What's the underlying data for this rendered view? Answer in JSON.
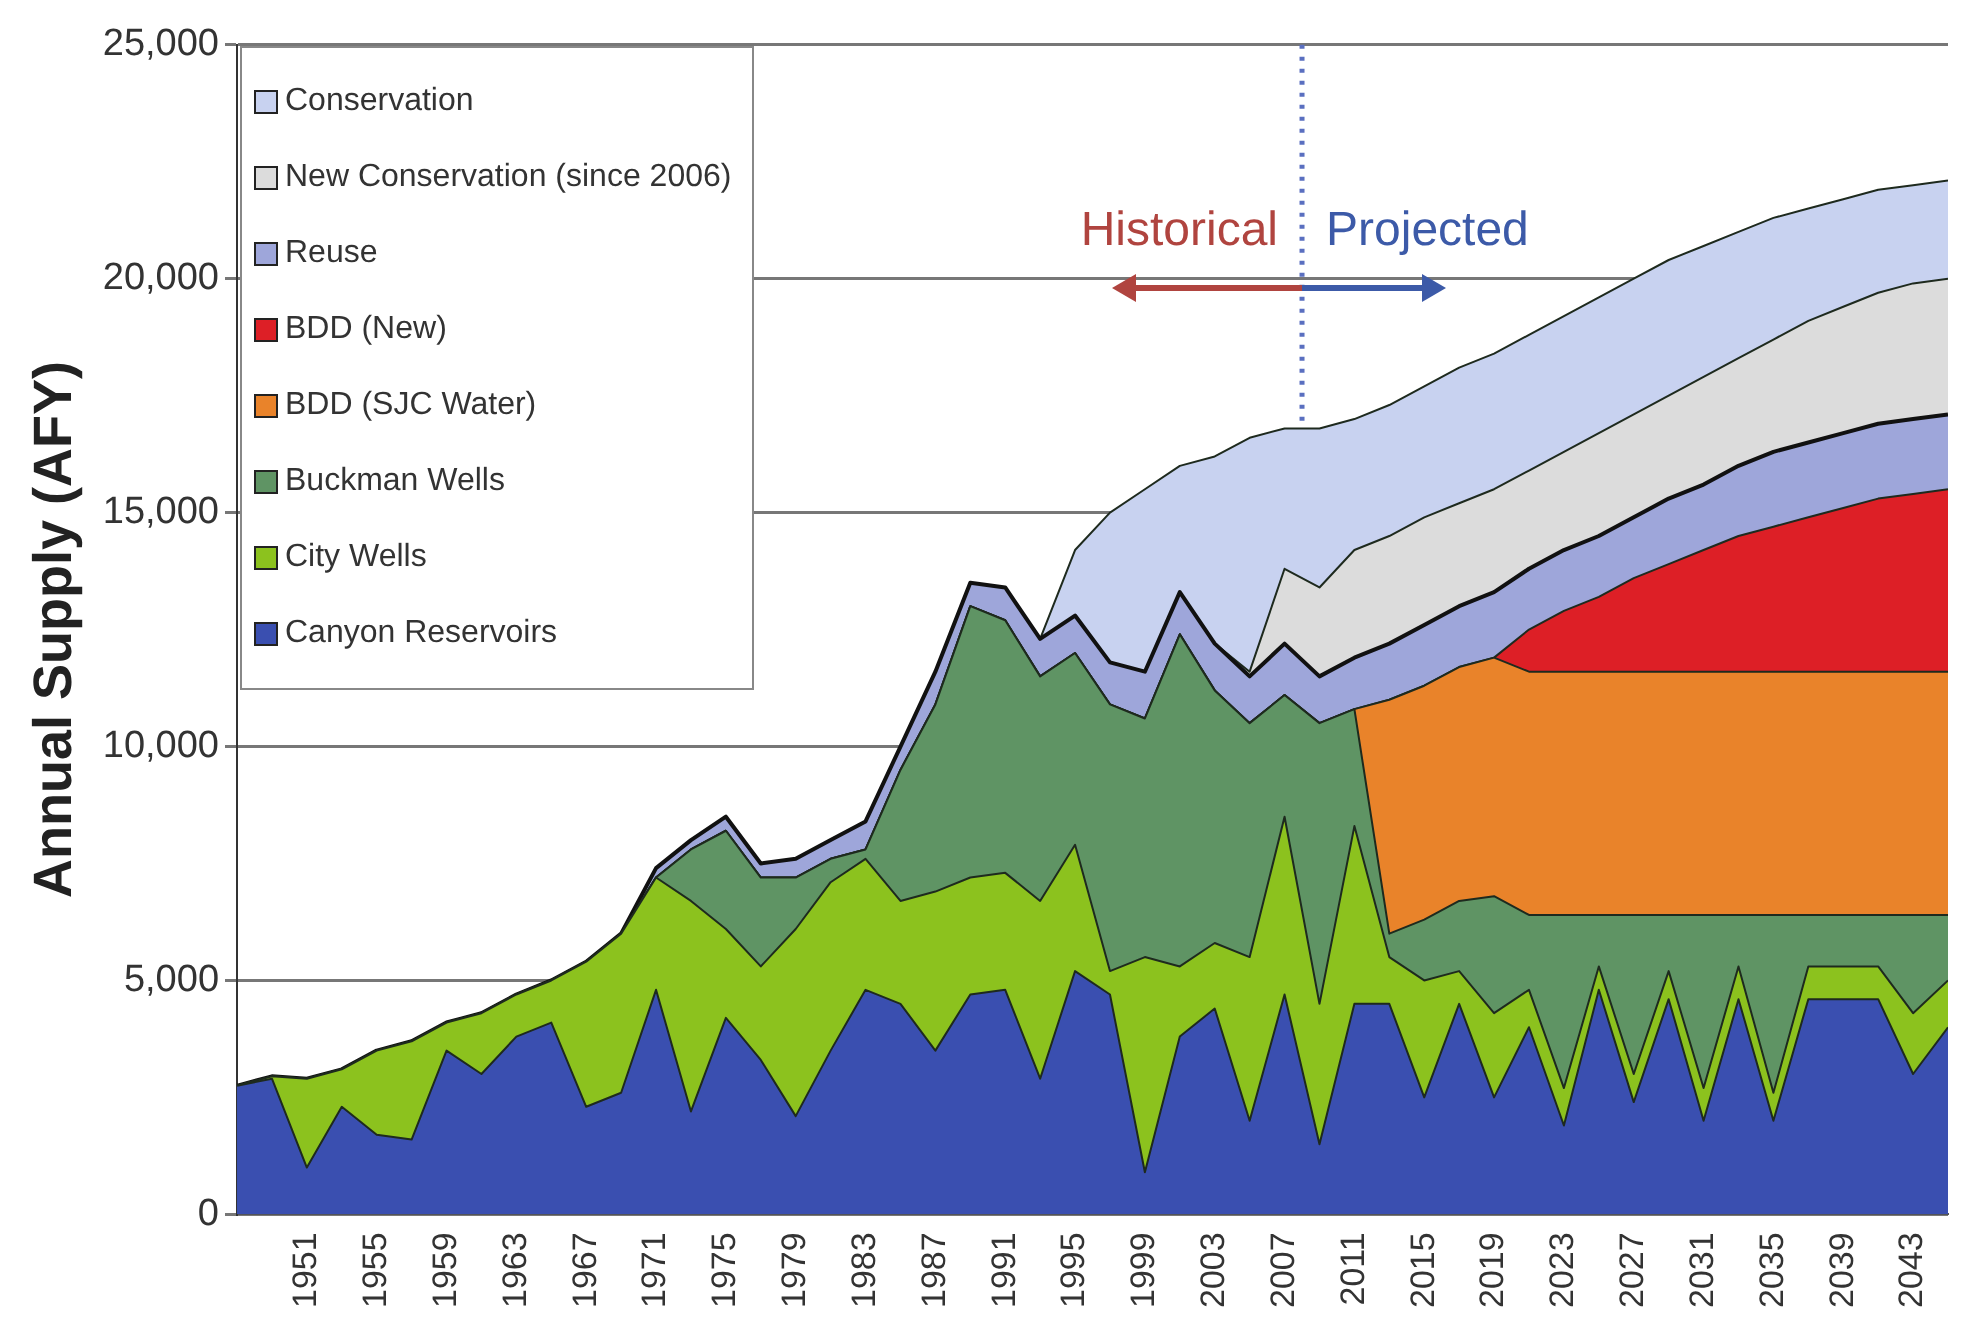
{
  "chart_data": {
    "type": "area",
    "ylabel": "Annual Supply (AFY)",
    "x": [
      1947,
      1949,
      1951,
      1953,
      1955,
      1957,
      1959,
      1961,
      1963,
      1965,
      1967,
      1969,
      1971,
      1973,
      1975,
      1977,
      1979,
      1981,
      1983,
      1985,
      1987,
      1989,
      1991,
      1993,
      1995,
      1997,
      1999,
      2001,
      2003,
      2005,
      2007,
      2009,
      2011,
      2013,
      2015,
      2017,
      2019,
      2021,
      2023,
      2025,
      2027,
      2029,
      2031,
      2033,
      2035,
      2037,
      2039,
      2041,
      2043,
      2045
    ],
    "stacked": true,
    "series": [
      {
        "name": "Canyon Reservoirs",
        "color": "#3a4fb0",
        "values": [
          2750,
          2900,
          1000,
          2300,
          1700,
          1600,
          3500,
          3000,
          3800,
          4100,
          2300,
          2600,
          4800,
          2200,
          4200,
          3300,
          2100,
          3500,
          4800,
          4500,
          3500,
          4700,
          4800,
          2900,
          5200,
          4700,
          900,
          3800,
          4400,
          2000,
          4700,
          1500,
          4500,
          4500,
          2500,
          4500,
          2500,
          4000,
          1900,
          4800,
          2400,
          4600,
          2000,
          4600,
          2000,
          4600,
          4600,
          4600,
          3000,
          4000
        ]
      },
      {
        "name": "City Wells",
        "color": "#8cc21e",
        "values": [
          0,
          50,
          1900,
          800,
          1800,
          2100,
          600,
          1300,
          900,
          900,
          3100,
          3400,
          2400,
          4500,
          1900,
          2000,
          4000,
          3600,
          2800,
          2200,
          3400,
          2500,
          2500,
          3800,
          2700,
          500,
          4600,
          1500,
          1400,
          3500,
          3800,
          3000,
          3800,
          1000,
          2500,
          700,
          1800,
          800,
          800,
          500,
          600,
          600,
          700,
          700,
          600,
          700,
          700,
          700,
          1300,
          1000
        ]
      },
      {
        "name": "Buckman Wells",
        "color": "#5f9464",
        "values": [
          0,
          0,
          0,
          0,
          0,
          0,
          0,
          0,
          0,
          0,
          0,
          0,
          0,
          1100,
          2100,
          1900,
          1100,
          500,
          200,
          2800,
          4000,
          5800,
          5400,
          4800,
          4100,
          5700,
          5100,
          7100,
          5400,
          5000,
          2600,
          6000,
          2500,
          500,
          1300,
          1500,
          2500,
          1600,
          3700,
          1100,
          3400,
          1200,
          3700,
          1100,
          3800,
          1100,
          1100,
          1100,
          2100,
          1400
        ]
      },
      {
        "name": "BDD (SJC Water)",
        "color": "#e9832a",
        "values": [
          0,
          0,
          0,
          0,
          0,
          0,
          0,
          0,
          0,
          0,
          0,
          0,
          0,
          0,
          0,
          0,
          0,
          0,
          0,
          0,
          0,
          0,
          0,
          0,
          0,
          0,
          0,
          0,
          0,
          0,
          0,
          0,
          0,
          5000,
          5000,
          5000,
          5100,
          5200,
          5200,
          5200,
          5200,
          5200,
          5200,
          5200,
          5200,
          5200,
          5200,
          5200,
          5200,
          5200
        ]
      },
      {
        "name": "BDD (New)",
        "color": "#dd1f26",
        "values": [
          0,
          0,
          0,
          0,
          0,
          0,
          0,
          0,
          0,
          0,
          0,
          0,
          0,
          0,
          0,
          0,
          0,
          0,
          0,
          0,
          0,
          0,
          0,
          0,
          0,
          0,
          0,
          0,
          0,
          0,
          0,
          0,
          0,
          0,
          0,
          0,
          0,
          900,
          1300,
          1600,
          2000,
          2300,
          2600,
          2900,
          3100,
          3300,
          3500,
          3700,
          3800,
          3900
        ]
      },
      {
        "name": "Reuse",
        "color": "#9ea6da",
        "values": [
          0,
          0,
          0,
          0,
          0,
          0,
          0,
          0,
          0,
          0,
          0,
          0,
          200,
          200,
          300,
          300,
          400,
          400,
          600,
          500,
          700,
          500,
          700,
          800,
          800,
          900,
          1000,
          900,
          1000,
          1000,
          1100,
          1000,
          1100,
          1200,
          1300,
          1300,
          1400,
          1300,
          1300,
          1300,
          1300,
          1400,
          1400,
          1500,
          1600,
          1600,
          1600,
          1600,
          1600,
          1600
        ]
      },
      {
        "name": "New Conservation (since 2006)",
        "color": "#dcdcdc",
        "values": [
          0,
          0,
          0,
          0,
          0,
          0,
          0,
          0,
          0,
          0,
          0,
          0,
          0,
          0,
          0,
          0,
          0,
          0,
          0,
          0,
          0,
          0,
          0,
          0,
          0,
          0,
          0,
          0,
          0,
          100,
          1600,
          1900,
          2300,
          2300,
          2300,
          2200,
          2200,
          2100,
          2100,
          2200,
          2200,
          2200,
          2300,
          2300,
          2400,
          2600,
          2700,
          2800,
          2900,
          2900
        ]
      },
      {
        "name": "Conservation",
        "color": "#c8d2f0",
        "values": [
          0,
          0,
          0,
          0,
          0,
          0,
          0,
          0,
          0,
          0,
          0,
          0,
          0,
          0,
          0,
          0,
          0,
          0,
          0,
          0,
          0,
          0,
          0,
          0,
          1400,
          3200,
          3900,
          2700,
          4000,
          5000,
          3000,
          3400,
          2800,
          2800,
          2800,
          2900,
          2900,
          2900,
          2900,
          2900,
          2900,
          2900,
          2800,
          2700,
          2600,
          2400,
          2300,
          2200,
          2100,
          2100
        ]
      }
    ],
    "xlim": [
      1947,
      2045
    ],
    "xticks": [
      1951,
      1955,
      1959,
      1963,
      1967,
      1971,
      1975,
      1979,
      1983,
      1987,
      1991,
      1995,
      1999,
      2003,
      2007,
      2011,
      2015,
      2019,
      2023,
      2027,
      2031,
      2035,
      2039,
      2043
    ],
    "ylim": [
      0,
      25000
    ],
    "yticks": [
      0,
      {
        "value": 5000,
        "label": "5,000"
      },
      {
        "value": 10000,
        "label": "10,000"
      },
      {
        "value": 15000,
        "label": "15,000"
      },
      {
        "value": 20000,
        "label": "20,000"
      },
      {
        "value": 25000,
        "label": "25,000"
      }
    ],
    "grid": "y",
    "legend": "top left",
    "ref_lines": [
      {
        "axis": "x",
        "value": 2008,
        "color": "#5a6fc0",
        "line_style": "dotted"
      }
    ],
    "annotations": [
      "Historical",
      "Projected"
    ]
  }
}
